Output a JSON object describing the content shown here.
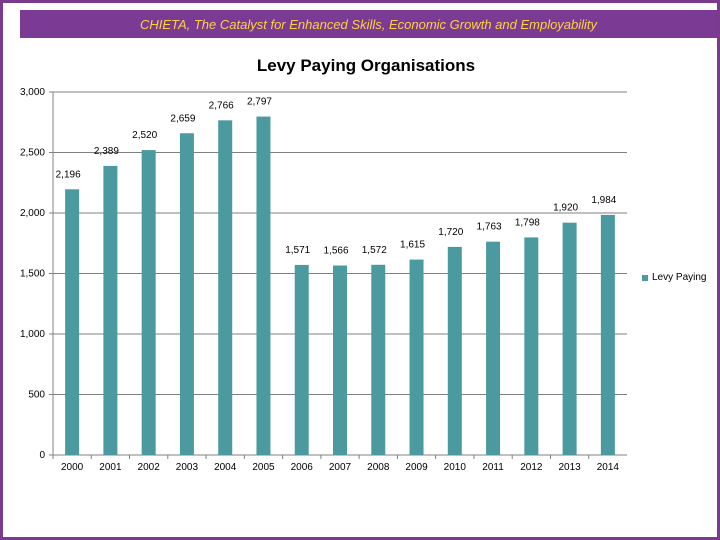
{
  "banner": {
    "text": "CHIETA, The Catalyst for Enhanced Skills, Economic Growth and Employability"
  },
  "chart_data": {
    "type": "bar",
    "title": "Levy Paying Organisations",
    "categories": [
      "2000",
      "2001",
      "2002",
      "2003",
      "2004",
      "2005",
      "2006",
      "2007",
      "2008",
      "2009",
      "2010",
      "2011",
      "2012",
      "2013",
      "2014"
    ],
    "series": [
      {
        "name": "Levy Paying",
        "values": [
          2196,
          2389,
          2520,
          2659,
          2766,
          2797,
          1571,
          1566,
          1572,
          1615,
          1720,
          1763,
          1798,
          1920,
          1984
        ],
        "labels": [
          "2,196",
          "2,389",
          "2,520",
          "2,659",
          "2,766",
          "2,797",
          "1,571",
          "1,566",
          "1,572",
          "1,615",
          "1,720",
          "1,763",
          "1,798",
          "1,920",
          "1,984"
        ]
      }
    ],
    "ylim": [
      0,
      3000
    ],
    "yticks": [
      0,
      500,
      1000,
      1500,
      2000,
      2500,
      3000
    ],
    "ytick_labels": [
      "0",
      "500",
      "1,000",
      "1,500",
      "2,000",
      "2,500",
      "3,000"
    ],
    "grid": true,
    "legend": "right",
    "bar_color": "#4a9aa0",
    "grid_color": "#808080"
  }
}
